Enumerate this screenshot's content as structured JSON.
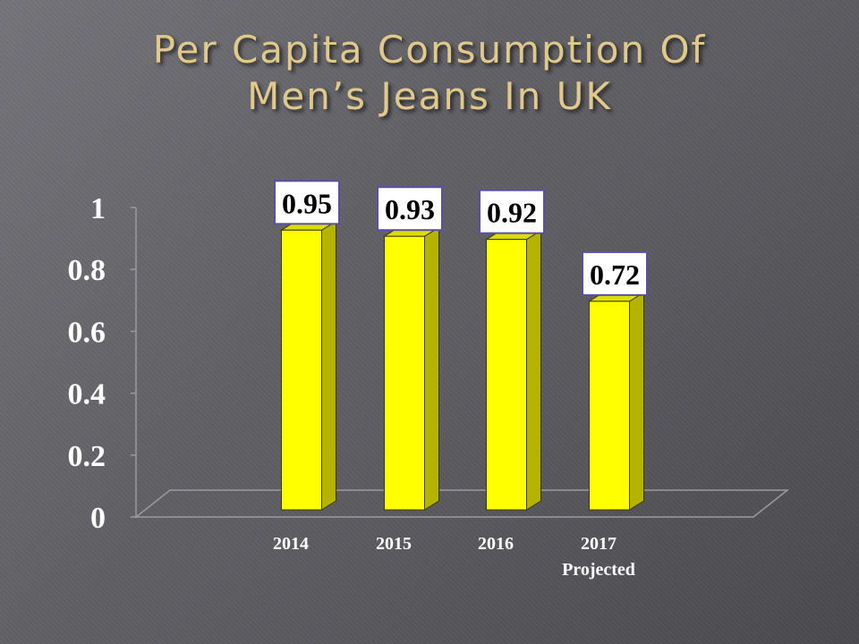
{
  "title_line1": "Per Capita Consumption Of",
  "title_line2": "Men’s Jeans In UK",
  "colors": {
    "bar_face": "#ffff00",
    "bar_side": "#b3b300",
    "bar_top": "#dcdc00",
    "title": "#e0c98a",
    "axis_text": "#ffffff",
    "label_border": "#5b4ea8"
  },
  "chart_data": {
    "type": "bar",
    "categories": [
      "2014",
      "2015",
      "2016",
      "2017"
    ],
    "category_sublabels": [
      "",
      "",
      "",
      "Projected"
    ],
    "values": [
      0.95,
      0.93,
      0.92,
      0.72
    ],
    "data_labels": [
      "0.95",
      "0.93",
      "0.92",
      "0.72"
    ],
    "ylim": [
      0,
      1
    ],
    "yticks": [
      "0",
      "0.2",
      "0.4",
      "0.6",
      "0.8",
      "1"
    ],
    "grid": false,
    "legend": false,
    "three_d": true
  }
}
